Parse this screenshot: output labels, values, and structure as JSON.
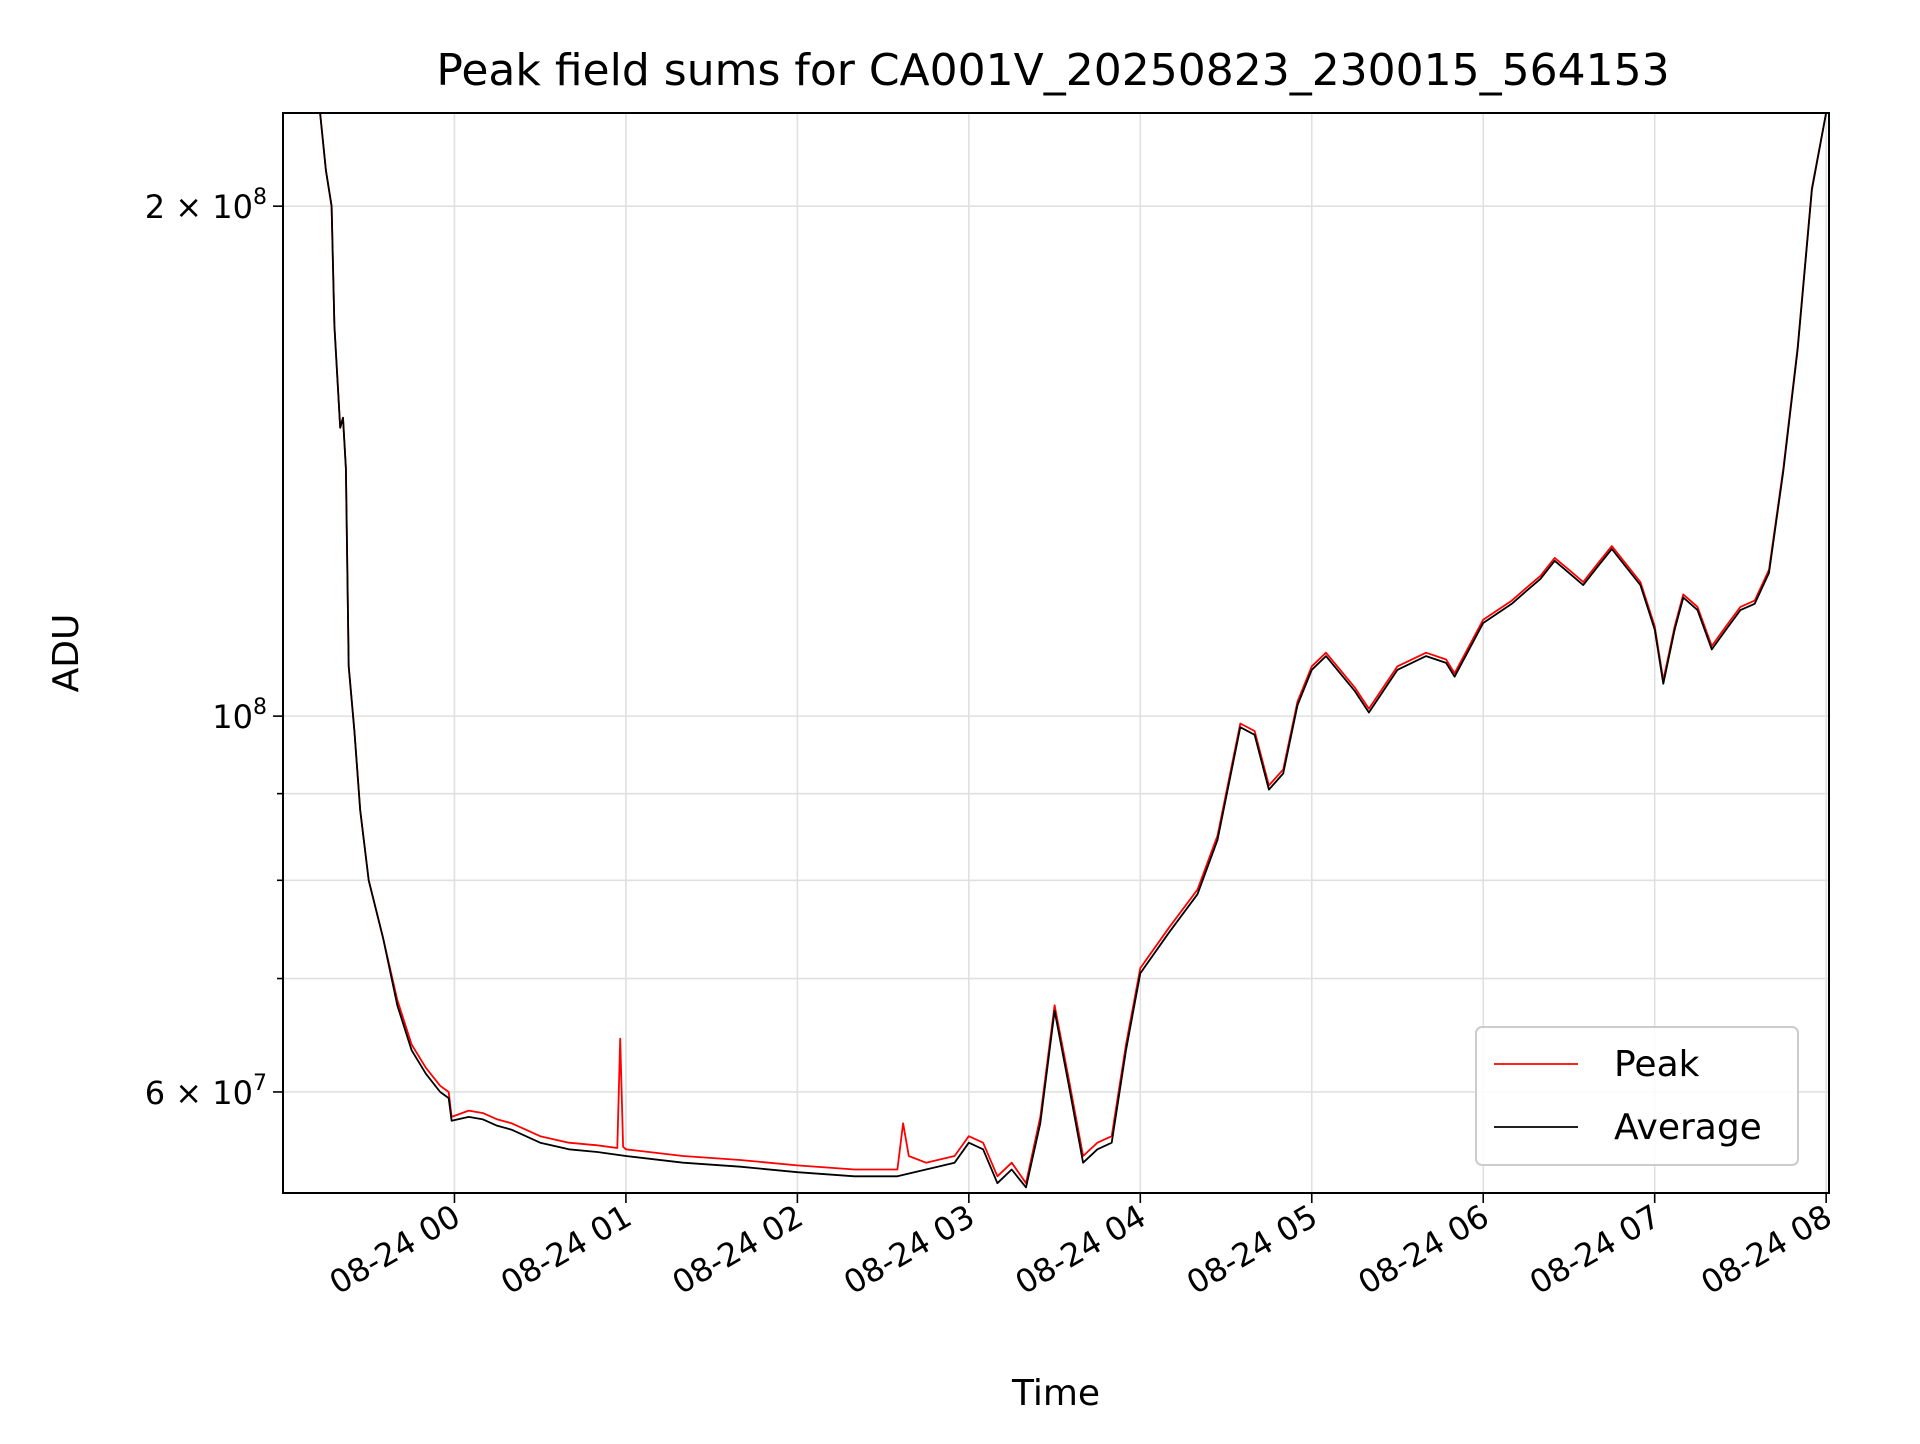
{
  "chart_data": {
    "type": "line",
    "title": "Peak field sums for CA001V_20250823_230015_564153",
    "xlabel": "Time",
    "ylabel": "ADU",
    "y_scale": "log",
    "ylim": [
      52300000,
      227000000
    ],
    "xlim": [
      "2025-08-23 23:00",
      "2025-08-24 08:01"
    ],
    "grid": true,
    "legend_position": "lower right",
    "x_ticks": [
      {
        "value": "2025-08-24 00:00",
        "label": "08-24 00"
      },
      {
        "value": "2025-08-24 01:00",
        "label": "08-24 01"
      },
      {
        "value": "2025-08-24 02:00",
        "label": "08-24 02"
      },
      {
        "value": "2025-08-24 03:00",
        "label": "08-24 03"
      },
      {
        "value": "2025-08-24 04:00",
        "label": "08-24 04"
      },
      {
        "value": "2025-08-24 05:00",
        "label": "08-24 05"
      },
      {
        "value": "2025-08-24 06:00",
        "label": "08-24 06"
      },
      {
        "value": "2025-08-24 07:00",
        "label": "08-24 07"
      },
      {
        "value": "2025-08-24 08:00",
        "label": "08-24 08"
      }
    ],
    "y_ticks": [
      {
        "value": 60000000,
        "mant": "6",
        "exp": "7"
      },
      {
        "value": 100000000,
        "mant": "",
        "exp": "8"
      },
      {
        "value": 200000000,
        "mant": "2",
        "exp": "8"
      }
    ],
    "y_minor_ticks": [
      70000000,
      80000000,
      90000000
    ],
    "series": [
      {
        "name": "Peak",
        "color": "#ff0000",
        "x": [
          "2025-08-23 23:00",
          "2025-08-23 23:13",
          "2025-08-23 23:15",
          "2025-08-23 23:17",
          "2025-08-23 23:18",
          "2025-08-23 23:20",
          "2025-08-23 23:21",
          "2025-08-23 23:22",
          "2025-08-23 23:23",
          "2025-08-23 23:25",
          "2025-08-23 23:27",
          "2025-08-23 23:30",
          "2025-08-23 23:35",
          "2025-08-23 23:40",
          "2025-08-23 23:45",
          "2025-08-23 23:50",
          "2025-08-23 23:55",
          "2025-08-23 23:58",
          "2025-08-23 23:59",
          "2025-08-24 00:05",
          "2025-08-24 00:10",
          "2025-08-24 00:15",
          "2025-08-24 00:20",
          "2025-08-24 00:25",
          "2025-08-24 00:30",
          "2025-08-24 00:40",
          "2025-08-24 00:50",
          "2025-08-24 00:57",
          "2025-08-24 00:58",
          "2025-08-24 00:59",
          "2025-08-24 01:00",
          "2025-08-24 01:20",
          "2025-08-24 01:40",
          "2025-08-24 02:00",
          "2025-08-24 02:20",
          "2025-08-24 02:35",
          "2025-08-24 02:37",
          "2025-08-24 02:39",
          "2025-08-24 02:45",
          "2025-08-24 02:55",
          "2025-08-24 03:00",
          "2025-08-24 03:05",
          "2025-08-24 03:10",
          "2025-08-24 03:15",
          "2025-08-24 03:20",
          "2025-08-24 03:25",
          "2025-08-24 03:30",
          "2025-08-24 03:35",
          "2025-08-24 03:40",
          "2025-08-24 03:45",
          "2025-08-24 03:50",
          "2025-08-24 03:55",
          "2025-08-24 04:00",
          "2025-08-24 04:10",
          "2025-08-24 04:20",
          "2025-08-24 04:27",
          "2025-08-24 04:35",
          "2025-08-24 04:40",
          "2025-08-24 04:45",
          "2025-08-24 04:50",
          "2025-08-24 04:55",
          "2025-08-24 05:00",
          "2025-08-24 05:05",
          "2025-08-24 05:15",
          "2025-08-24 05:20",
          "2025-08-24 05:30",
          "2025-08-24 05:40",
          "2025-08-24 05:47",
          "2025-08-24 05:50",
          "2025-08-24 06:00",
          "2025-08-24 06:10",
          "2025-08-24 06:15",
          "2025-08-24 06:20",
          "2025-08-24 06:25",
          "2025-08-24 06:30",
          "2025-08-24 06:35",
          "2025-08-24 06:40",
          "2025-08-24 06:45",
          "2025-08-24 06:55",
          "2025-08-24 07:00",
          "2025-08-24 07:03",
          "2025-08-24 07:07",
          "2025-08-24 07:10",
          "2025-08-24 07:15",
          "2025-08-24 07:20",
          "2025-08-24 07:25",
          "2025-08-24 07:30",
          "2025-08-24 07:35",
          "2025-08-24 07:40",
          "2025-08-24 07:45",
          "2025-08-24 07:50",
          "2025-08-24 07:55",
          "2025-08-24 08:00",
          "2025-08-24 08:01"
        ],
        "y": [
          227000000,
          227000000,
          210000000,
          200000000,
          170000000,
          148000000,
          150000000,
          140000000,
          107000000,
          98000000,
          88000000,
          80000000,
          74000000,
          68000000,
          64000000,
          62000000,
          60500000,
          60000000,
          58000000,
          58500000,
          58300000,
          57800000,
          57500000,
          57000000,
          56500000,
          56000000,
          55800000,
          55600000,
          64500000,
          55700000,
          55500000,
          55000000,
          54700000,
          54300000,
          54000000,
          54000000,
          57500000,
          55000000,
          54500000,
          55000000,
          56500000,
          56000000,
          53500000,
          54500000,
          53000000,
          58000000,
          67500000,
          61000000,
          55000000,
          56000000,
          56500000,
          64000000,
          71000000,
          75000000,
          79000000,
          85000000,
          99000000,
          98000000,
          91000000,
          93000000,
          102000000,
          107000000,
          109000000,
          104000000,
          101000000,
          107000000,
          109000000,
          108000000,
          106000000,
          114000000,
          117000000,
          119000000,
          121000000,
          124000000,
          122000000,
          120000000,
          123000000,
          126000000,
          120000000,
          113000000,
          105000000,
          113000000,
          118000000,
          116000000,
          110000000,
          113000000,
          116000000,
          117000000,
          122000000,
          140000000,
          165000000,
          205000000,
          227000000,
          227000000
        ]
      },
      {
        "name": "Average",
        "color": "#000000",
        "x": [
          "2025-08-23 23:00",
          "2025-08-23 23:13",
          "2025-08-23 23:15",
          "2025-08-23 23:17",
          "2025-08-23 23:18",
          "2025-08-23 23:20",
          "2025-08-23 23:21",
          "2025-08-23 23:22",
          "2025-08-23 23:23",
          "2025-08-23 23:25",
          "2025-08-23 23:27",
          "2025-08-23 23:30",
          "2025-08-23 23:35",
          "2025-08-23 23:40",
          "2025-08-23 23:45",
          "2025-08-23 23:50",
          "2025-08-23 23:55",
          "2025-08-23 23:58",
          "2025-08-23 23:59",
          "2025-08-24 00:05",
          "2025-08-24 00:10",
          "2025-08-24 00:15",
          "2025-08-24 00:20",
          "2025-08-24 00:25",
          "2025-08-24 00:30",
          "2025-08-24 00:40",
          "2025-08-24 00:50",
          "2025-08-24 01:00",
          "2025-08-24 01:20",
          "2025-08-24 01:40",
          "2025-08-24 02:00",
          "2025-08-24 02:20",
          "2025-08-24 02:35",
          "2025-08-24 02:45",
          "2025-08-24 02:55",
          "2025-08-24 03:00",
          "2025-08-24 03:05",
          "2025-08-24 03:10",
          "2025-08-24 03:15",
          "2025-08-24 03:20",
          "2025-08-24 03:25",
          "2025-08-24 03:30",
          "2025-08-24 03:35",
          "2025-08-24 03:40",
          "2025-08-24 03:45",
          "2025-08-24 03:50",
          "2025-08-24 03:55",
          "2025-08-24 04:00",
          "2025-08-24 04:10",
          "2025-08-24 04:20",
          "2025-08-24 04:27",
          "2025-08-24 04:35",
          "2025-08-24 04:40",
          "2025-08-24 04:45",
          "2025-08-24 04:50",
          "2025-08-24 04:55",
          "2025-08-24 05:00",
          "2025-08-24 05:05",
          "2025-08-24 05:15",
          "2025-08-24 05:20",
          "2025-08-24 05:30",
          "2025-08-24 05:40",
          "2025-08-24 05:47",
          "2025-08-24 05:50",
          "2025-08-24 06:00",
          "2025-08-24 06:10",
          "2025-08-24 06:15",
          "2025-08-24 06:20",
          "2025-08-24 06:25",
          "2025-08-24 06:30",
          "2025-08-24 06:35",
          "2025-08-24 06:40",
          "2025-08-24 06:45",
          "2025-08-24 06:55",
          "2025-08-24 07:00",
          "2025-08-24 07:03",
          "2025-08-24 07:07",
          "2025-08-24 07:10",
          "2025-08-24 07:15",
          "2025-08-24 07:20",
          "2025-08-24 07:25",
          "2025-08-24 07:30",
          "2025-08-24 07:35",
          "2025-08-24 07:40",
          "2025-08-24 07:45",
          "2025-08-24 07:50",
          "2025-08-24 07:55",
          "2025-08-24 08:00",
          "2025-08-24 08:01"
        ],
        "y": [
          227000000,
          227000000,
          210000000,
          200000000,
          170000000,
          148000000,
          150000000,
          140000000,
          107000000,
          98000000,
          88000000,
          80000000,
          74000000,
          67500000,
          63500000,
          61500000,
          60000000,
          59500000,
          57700000,
          58000000,
          57800000,
          57300000,
          57000000,
          56500000,
          56000000,
          55500000,
          55300000,
          55000000,
          54500000,
          54200000,
          53800000,
          53500000,
          53500000,
          54000000,
          54500000,
          56000000,
          55500000,
          53000000,
          54000000,
          52700000,
          57500000,
          67000000,
          60500000,
          54500000,
          55500000,
          56000000,
          63500000,
          70500000,
          74500000,
          78500000,
          84500000,
          98500000,
          97500000,
          90500000,
          92500000,
          101500000,
          106500000,
          108500000,
          103500000,
          100500000,
          106500000,
          108500000,
          107500000,
          105500000,
          113500000,
          116500000,
          118500000,
          120500000,
          123500000,
          121500000,
          119500000,
          122500000,
          125500000,
          119500000,
          112500000,
          104500000,
          112500000,
          117500000,
          115500000,
          109500000,
          112500000,
          115500000,
          116500000,
          121500000,
          139500000,
          164500000,
          204500000,
          227000000,
          227000000
        ]
      }
    ]
  }
}
